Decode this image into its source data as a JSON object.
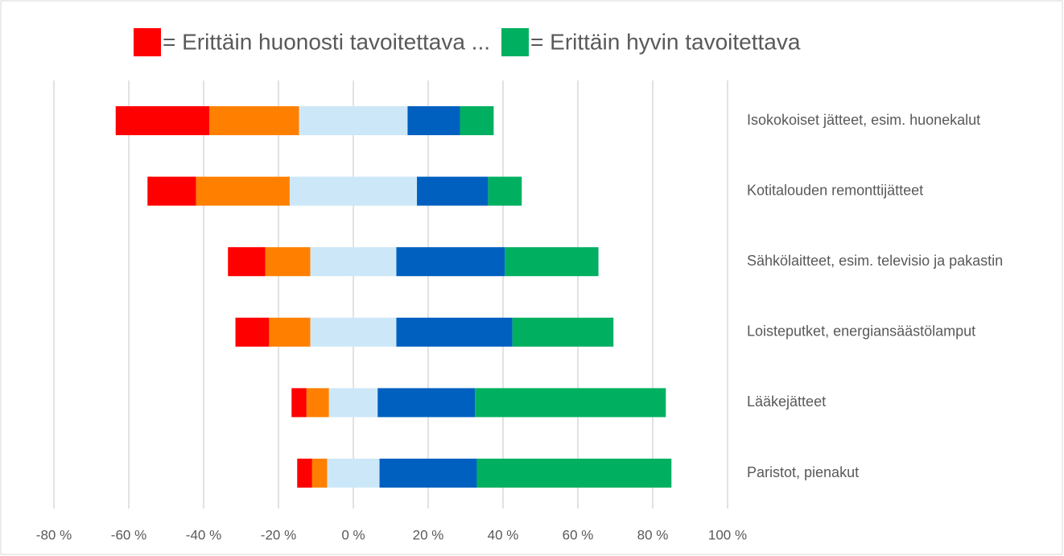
{
  "chart_data": {
    "type": "diverging_stacked_bar",
    "categories": [
      "Isokokoiset jätteet, esim. huonekalut",
      "Kotitalouden remonttijätteet",
      "Sähkölaitteet, esim. televisio ja pakastin",
      "Loisteputket, energiansäästölamput",
      "Lääkejätteet",
      "Paristot, pienakut"
    ],
    "series": [
      {
        "name": "= Erittäin huonosti tavoitettava ...",
        "color": "#ff0000",
        "values": [
          25,
          13,
          10,
          9,
          4,
          4
        ]
      },
      {
        "color": "#ff8000",
        "values": [
          24,
          25,
          12,
          11,
          6,
          4
        ]
      },
      {
        "color": "#cce8f8",
        "values": [
          29,
          34,
          23,
          23,
          13,
          14
        ]
      },
      {
        "color": "#0060c0",
        "values": [
          14,
          19,
          29,
          31,
          26,
          26
        ]
      },
      {
        "name": "= Erittäin hyvin tavoitettava",
        "color": "#00b060",
        "values": [
          9,
          9,
          25,
          27,
          51,
          52
        ]
      }
    ],
    "neutral_series": 2,
    "xlim": [
      -80,
      100
    ],
    "xticks": [
      {
        "value": -80,
        "label": "-80 %"
      },
      {
        "value": -60,
        "label": "-60 %"
      },
      {
        "value": -40,
        "label": "-40 %"
      },
      {
        "value": -20,
        "label": "-20 %"
      },
      {
        "value": 0,
        "label": "0 %"
      },
      {
        "value": 20,
        "label": "20 %"
      },
      {
        "value": 40,
        "label": "40 %"
      },
      {
        "value": 60,
        "label": "60 %"
      },
      {
        "value": 80,
        "label": "80 %"
      },
      {
        "value": 100,
        "label": "100 %"
      }
    ],
    "grid": true,
    "legend": "top"
  }
}
